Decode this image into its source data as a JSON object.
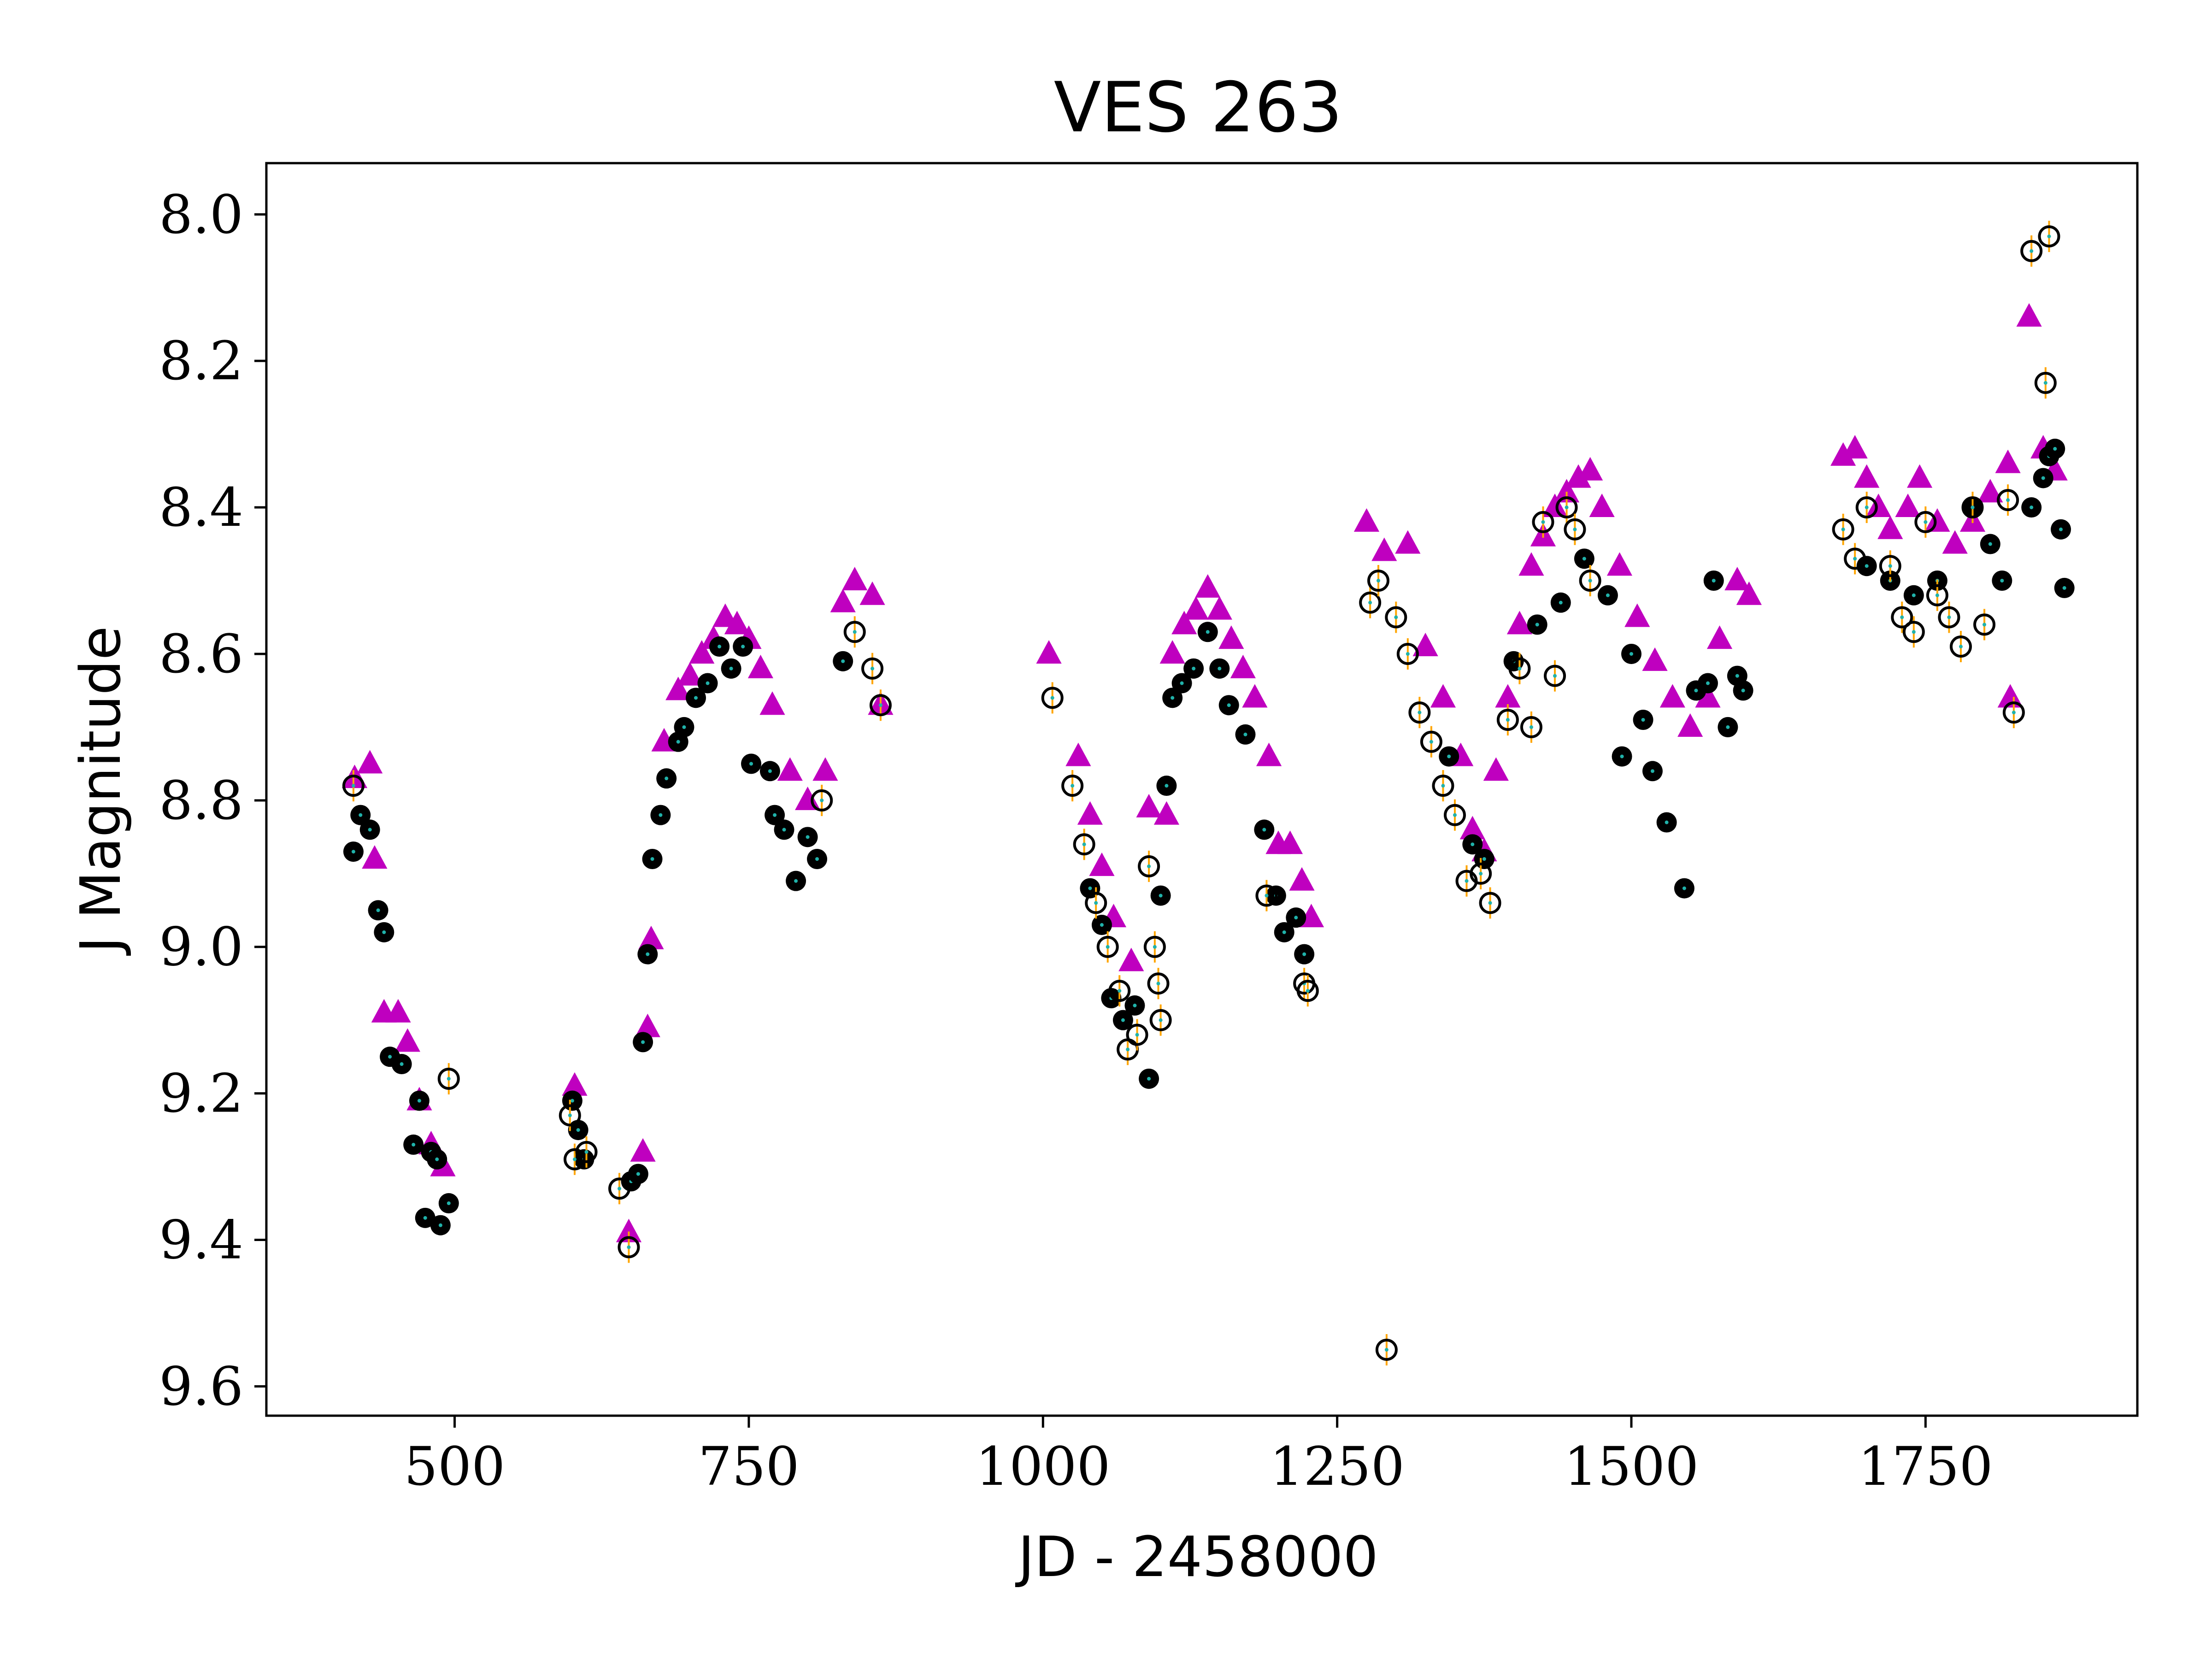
{
  "chart_data": {
    "type": "scatter",
    "title": "VES 263",
    "xlabel": "JD - 2458000",
    "ylabel": "J Magnitude",
    "xlim": [
      340,
      1930
    ],
    "ylim": [
      9.64,
      7.93
    ],
    "y_inverted": true,
    "xticks": [
      500,
      750,
      1000,
      1250,
      1500,
      1750
    ],
    "xtick_labels": [
      "500",
      "750",
      "1000",
      "1250",
      "1500",
      "1750"
    ],
    "yticks": [
      8.0,
      8.2,
      8.4,
      8.6,
      8.8,
      9.0,
      9.2,
      9.4,
      9.6
    ],
    "ytick_labels": [
      "8.0",
      "8.2",
      "8.4",
      "8.6",
      "8.8",
      "9.0",
      "9.2",
      "9.4",
      "9.6"
    ],
    "grid": false,
    "legend": "none",
    "colors": {
      "triangles": "#bf00bf",
      "filled": "#000000",
      "open": "#000000",
      "errorbar": "#ffa500",
      "center_dot": "#20b2aa"
    },
    "series": [
      {
        "marker": "triangle",
        "color": "#bf00bf",
        "points": [
          [
            415,
            8.77
          ],
          [
            428,
            8.75
          ],
          [
            432,
            8.88
          ],
          [
            440,
            9.09
          ],
          [
            452,
            9.09
          ],
          [
            460,
            9.13
          ],
          [
            470,
            9.21
          ],
          [
            480,
            9.27
          ],
          [
            490,
            9.3
          ],
          [
            602,
            9.19
          ],
          [
            648,
            9.39
          ],
          [
            660,
            9.28
          ],
          [
            664,
            9.11
          ],
          [
            667,
            8.99
          ],
          [
            678,
            8.72
          ],
          [
            690,
            8.65
          ],
          [
            700,
            8.63
          ],
          [
            710,
            8.6
          ],
          [
            720,
            8.58
          ],
          [
            730,
            8.55
          ],
          [
            740,
            8.56
          ],
          [
            750,
            8.58
          ],
          [
            760,
            8.62
          ],
          [
            770,
            8.67
          ],
          [
            785,
            8.76
          ],
          [
            800,
            8.8
          ],
          [
            815,
            8.76
          ],
          [
            830,
            8.53
          ],
          [
            840,
            8.5
          ],
          [
            855,
            8.52
          ],
          [
            862,
            8.67
          ],
          [
            1005,
            8.6
          ],
          [
            1030,
            8.74
          ],
          [
            1040,
            8.82
          ],
          [
            1050,
            8.89
          ],
          [
            1060,
            8.96
          ],
          [
            1075,
            9.02
          ],
          [
            1090,
            8.81
          ],
          [
            1105,
            8.82
          ],
          [
            1110,
            8.6
          ],
          [
            1120,
            8.56
          ],
          [
            1130,
            8.54
          ],
          [
            1140,
            8.51
          ],
          [
            1150,
            8.54
          ],
          [
            1160,
            8.58
          ],
          [
            1170,
            8.62
          ],
          [
            1180,
            8.66
          ],
          [
            1192,
            8.74
          ],
          [
            1200,
            8.86
          ],
          [
            1210,
            8.86
          ],
          [
            1220,
            8.91
          ],
          [
            1228,
            8.96
          ],
          [
            1275,
            8.42
          ],
          [
            1290,
            8.46
          ],
          [
            1310,
            8.45
          ],
          [
            1325,
            8.59
          ],
          [
            1340,
            8.66
          ],
          [
            1355,
            8.74
          ],
          [
            1365,
            8.84
          ],
          [
            1375,
            8.87
          ],
          [
            1385,
            8.76
          ],
          [
            1395,
            8.66
          ],
          [
            1405,
            8.56
          ],
          [
            1415,
            8.48
          ],
          [
            1425,
            8.44
          ],
          [
            1435,
            8.4
          ],
          [
            1445,
            8.38
          ],
          [
            1455,
            8.36
          ],
          [
            1465,
            8.35
          ],
          [
            1475,
            8.4
          ],
          [
            1490,
            8.48
          ],
          [
            1505,
            8.55
          ],
          [
            1520,
            8.61
          ],
          [
            1535,
            8.66
          ],
          [
            1550,
            8.7
          ],
          [
            1565,
            8.66
          ],
          [
            1575,
            8.58
          ],
          [
            1590,
            8.5
          ],
          [
            1600,
            8.52
          ],
          [
            1680,
            8.33
          ],
          [
            1690,
            8.32
          ],
          [
            1700,
            8.36
          ],
          [
            1710,
            8.4
          ],
          [
            1720,
            8.43
          ],
          [
            1735,
            8.4
          ],
          [
            1745,
            8.36
          ],
          [
            1760,
            8.42
          ],
          [
            1775,
            8.45
          ],
          [
            1790,
            8.42
          ],
          [
            1805,
            8.38
          ],
          [
            1820,
            8.34
          ],
          [
            1822,
            8.66
          ],
          [
            1838,
            8.14
          ],
          [
            1850,
            8.32
          ],
          [
            1860,
            8.35
          ]
        ]
      },
      {
        "marker": "filled-circle",
        "color": "#000000",
        "points": [
          [
            414,
            8.87
          ],
          [
            420,
            8.82
          ],
          [
            428,
            8.84
          ],
          [
            435,
            8.95
          ],
          [
            440,
            8.98
          ],
          [
            445,
            9.15
          ],
          [
            455,
            9.16
          ],
          [
            465,
            9.27
          ],
          [
            470,
            9.21
          ],
          [
            475,
            9.37
          ],
          [
            480,
            9.28
          ],
          [
            485,
            9.29
          ],
          [
            488,
            9.38
          ],
          [
            495,
            9.35
          ],
          [
            600,
            9.21
          ],
          [
            605,
            9.25
          ],
          [
            610,
            9.29
          ],
          [
            650,
            9.32
          ],
          [
            656,
            9.31
          ],
          [
            660,
            9.13
          ],
          [
            664,
            9.01
          ],
          [
            668,
            8.88
          ],
          [
            675,
            8.82
          ],
          [
            680,
            8.77
          ],
          [
            690,
            8.72
          ],
          [
            695,
            8.7
          ],
          [
            705,
            8.66
          ],
          [
            715,
            8.64
          ],
          [
            725,
            8.59
          ],
          [
            735,
            8.62
          ],
          [
            745,
            8.59
          ],
          [
            752,
            8.75
          ],
          [
            768,
            8.76
          ],
          [
            772,
            8.82
          ],
          [
            780,
            8.84
          ],
          [
            790,
            8.91
          ],
          [
            800,
            8.85
          ],
          [
            808,
            8.88
          ],
          [
            830,
            8.61
          ],
          [
            1040,
            8.92
          ],
          [
            1050,
            8.97
          ],
          [
            1058,
            9.07
          ],
          [
            1068,
            9.1
          ],
          [
            1078,
            9.08
          ],
          [
            1090,
            9.18
          ],
          [
            1100,
            8.93
          ],
          [
            1105,
            8.78
          ],
          [
            1110,
            8.66
          ],
          [
            1118,
            8.64
          ],
          [
            1128,
            8.62
          ],
          [
            1140,
            8.57
          ],
          [
            1150,
            8.62
          ],
          [
            1158,
            8.67
          ],
          [
            1172,
            8.71
          ],
          [
            1188,
            8.84
          ],
          [
            1198,
            8.93
          ],
          [
            1205,
            8.98
          ],
          [
            1215,
            8.96
          ],
          [
            1222,
            9.01
          ],
          [
            1345,
            8.74
          ],
          [
            1365,
            8.86
          ],
          [
            1375,
            8.88
          ],
          [
            1400,
            8.61
          ],
          [
            1420,
            8.56
          ],
          [
            1440,
            8.53
          ],
          [
            1460,
            8.47
          ],
          [
            1480,
            8.52
          ],
          [
            1492,
            8.74
          ],
          [
            1500,
            8.6
          ],
          [
            1510,
            8.69
          ],
          [
            1518,
            8.76
          ],
          [
            1530,
            8.83
          ],
          [
            1545,
            8.92
          ],
          [
            1555,
            8.65
          ],
          [
            1565,
            8.64
          ],
          [
            1570,
            8.5
          ],
          [
            1582,
            8.7
          ],
          [
            1590,
            8.63
          ],
          [
            1595,
            8.65
          ],
          [
            1700,
            8.48
          ],
          [
            1720,
            8.5
          ],
          [
            1740,
            8.52
          ],
          [
            1760,
            8.5
          ],
          [
            1790,
            8.4
          ],
          [
            1805,
            8.45
          ],
          [
            1815,
            8.5
          ],
          [
            1840,
            8.4
          ],
          [
            1850,
            8.36
          ],
          [
            1855,
            8.33
          ],
          [
            1860,
            8.32
          ],
          [
            1865,
            8.43
          ],
          [
            1868,
            8.51
          ]
        ]
      },
      {
        "marker": "open-circle",
        "color": "#000000",
        "points": [
          [
            414,
            8.78
          ],
          [
            495,
            9.18
          ],
          [
            598,
            9.23
          ],
          [
            602,
            9.29
          ],
          [
            612,
            9.28
          ],
          [
            640,
            9.33
          ],
          [
            648,
            9.41
          ],
          [
            812,
            8.8
          ],
          [
            840,
            8.57
          ],
          [
            855,
            8.62
          ],
          [
            862,
            8.67
          ],
          [
            1008,
            8.66
          ],
          [
            1025,
            8.78
          ],
          [
            1035,
            8.86
          ],
          [
            1045,
            8.94
          ],
          [
            1055,
            9.0
          ],
          [
            1065,
            9.06
          ],
          [
            1072,
            9.14
          ],
          [
            1080,
            9.12
          ],
          [
            1090,
            8.89
          ],
          [
            1095,
            9.0
          ],
          [
            1098,
            9.05
          ],
          [
            1100,
            9.1
          ],
          [
            1190,
            8.93
          ],
          [
            1222,
            9.05
          ],
          [
            1225,
            9.06
          ],
          [
            1278,
            8.53
          ],
          [
            1285,
            8.5
          ],
          [
            1292,
            9.55
          ],
          [
            1300,
            8.55
          ],
          [
            1310,
            8.6
          ],
          [
            1320,
            8.68
          ],
          [
            1330,
            8.72
          ],
          [
            1340,
            8.78
          ],
          [
            1350,
            8.82
          ],
          [
            1360,
            8.91
          ],
          [
            1372,
            8.9
          ],
          [
            1380,
            8.94
          ],
          [
            1395,
            8.69
          ],
          [
            1405,
            8.62
          ],
          [
            1415,
            8.7
          ],
          [
            1425,
            8.42
          ],
          [
            1435,
            8.63
          ],
          [
            1445,
            8.4
          ],
          [
            1452,
            8.43
          ],
          [
            1465,
            8.5
          ],
          [
            1680,
            8.43
          ],
          [
            1690,
            8.47
          ],
          [
            1700,
            8.4
          ],
          [
            1720,
            8.48
          ],
          [
            1730,
            8.55
          ],
          [
            1740,
            8.57
          ],
          [
            1750,
            8.42
          ],
          [
            1760,
            8.52
          ],
          [
            1770,
            8.55
          ],
          [
            1780,
            8.59
          ],
          [
            1790,
            8.4
          ],
          [
            1800,
            8.56
          ],
          [
            1820,
            8.39
          ],
          [
            1825,
            8.68
          ],
          [
            1840,
            8.05
          ],
          [
            1852,
            8.23
          ],
          [
            1855,
            8.03
          ]
        ]
      }
    ]
  }
}
